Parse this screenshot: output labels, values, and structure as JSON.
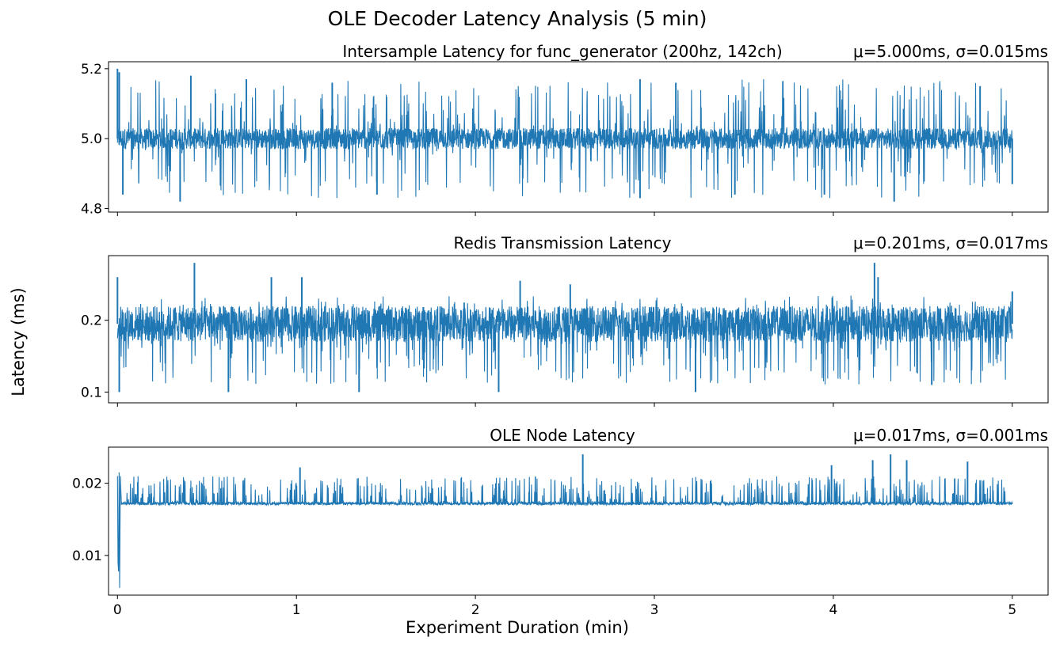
{
  "figure": {
    "suptitle": "OLE Decoder Latency Analysis (5 min)",
    "ylabel": "Latency (ms)",
    "xlabel": "Experiment Duration (min)"
  },
  "colors": {
    "line": "#1f77b4",
    "axis": "#000000",
    "background": "#ffffff"
  },
  "chart_data": [
    {
      "type": "line",
      "title": "Intersample Latency for func_generator (200hz, 142ch)",
      "stats": "μ=5.000ms, σ=0.015ms",
      "xlim": [
        -0.05,
        5.2
      ],
      "ylim": [
        4.79,
        5.22
      ],
      "xticks": [
        0,
        1,
        2,
        3,
        4,
        5
      ],
      "xtick_labels": [],
      "yticks": [
        4.8,
        5.0,
        5.2
      ],
      "ytick_labels": [
        "4.8",
        "5.0",
        "5.2"
      ],
      "series": [
        {
          "x_range": [
            0,
            5
          ],
          "band": [
            4.97,
            5.03
          ],
          "spike_range": [
            4.83,
            5.17
          ],
          "extremes": [
            {
              "x": 0.0,
              "y": 5.2
            },
            {
              "x": 0.01,
              "y": 5.19
            },
            {
              "x": 0.03,
              "y": 4.84
            },
            {
              "x": 0.35,
              "y": 4.82
            },
            {
              "x": 0.41,
              "y": 5.18
            },
            {
              "x": 0.72,
              "y": 5.17
            },
            {
              "x": 1.2,
              "y": 5.16
            },
            {
              "x": 1.45,
              "y": 4.84
            },
            {
              "x": 2.92,
              "y": 5.17
            },
            {
              "x": 2.92,
              "y": 4.83
            },
            {
              "x": 3.12,
              "y": 5.16
            },
            {
              "x": 3.45,
              "y": 4.84
            },
            {
              "x": 3.95,
              "y": 4.84
            },
            {
              "x": 4.34,
              "y": 4.82
            },
            {
              "x": 4.82,
              "y": 5.15
            },
            {
              "x": 5.0,
              "y": 4.87
            }
          ]
        }
      ]
    },
    {
      "type": "line",
      "title": "Redis Transmission Latency",
      "stats": "μ=0.201ms, σ=0.017ms",
      "xlim": [
        -0.05,
        5.2
      ],
      "ylim": [
        0.085,
        0.29
      ],
      "xticks": [
        0,
        1,
        2,
        3,
        4,
        5
      ],
      "xtick_labels": [],
      "yticks": [
        0.1,
        0.2
      ],
      "ytick_labels": [
        "0.1",
        "0.2"
      ],
      "series": [
        {
          "x_range": [
            0,
            5
          ],
          "band": [
            0.17,
            0.22
          ],
          "spike_range": [
            0.11,
            0.235
          ],
          "extremes": [
            {
              "x": 0.0,
              "y": 0.26
            },
            {
              "x": 0.01,
              "y": 0.1
            },
            {
              "x": 0.43,
              "y": 0.28
            },
            {
              "x": 0.62,
              "y": 0.1
            },
            {
              "x": 0.86,
              "y": 0.26
            },
            {
              "x": 1.03,
              "y": 0.26
            },
            {
              "x": 1.35,
              "y": 0.1
            },
            {
              "x": 2.13,
              "y": 0.1
            },
            {
              "x": 2.25,
              "y": 0.255
            },
            {
              "x": 2.53,
              "y": 0.25
            },
            {
              "x": 3.23,
              "y": 0.1
            },
            {
              "x": 4.23,
              "y": 0.28
            },
            {
              "x": 4.25,
              "y": 0.26
            },
            {
              "x": 4.55,
              "y": 0.11
            },
            {
              "x": 5.0,
              "y": 0.24
            }
          ]
        }
      ]
    },
    {
      "type": "line",
      "title": "OLE Node Latency",
      "stats": "μ=0.017ms, σ=0.001ms",
      "xlim": [
        -0.05,
        5.2
      ],
      "ylim": [
        0.0045,
        0.025
      ],
      "xticks": [
        0,
        1,
        2,
        3,
        4,
        5
      ],
      "xtick_labels": [
        "0",
        "1",
        "2",
        "3",
        "4",
        "5"
      ],
      "yticks": [
        0.01,
        0.02
      ],
      "ytick_labels": [
        "0.01",
        "0.02"
      ],
      "series": [
        {
          "x_range": [
            0,
            5
          ],
          "band": [
            0.017,
            0.0174
          ],
          "spike_range": [
            0.017,
            0.021
          ],
          "warmup": [
            {
              "x": 0.0,
              "y": 0.021
            },
            {
              "x": 0.003,
              "y": 0.009
            },
            {
              "x": 0.006,
              "y": 0.0078
            },
            {
              "x": 0.009,
              "y": 0.0215
            },
            {
              "x": 0.012,
              "y": 0.0055
            },
            {
              "x": 0.016,
              "y": 0.021
            },
            {
              "x": 0.022,
              "y": 0.017
            }
          ],
          "extremes": [
            {
              "x": 1.02,
              "y": 0.0222
            },
            {
              "x": 2.6,
              "y": 0.024
            },
            {
              "x": 3.99,
              "y": 0.0225
            },
            {
              "x": 4.22,
              "y": 0.0232
            },
            {
              "x": 4.32,
              "y": 0.024
            },
            {
              "x": 4.41,
              "y": 0.0232
            },
            {
              "x": 4.75,
              "y": 0.023
            }
          ]
        }
      ]
    }
  ]
}
